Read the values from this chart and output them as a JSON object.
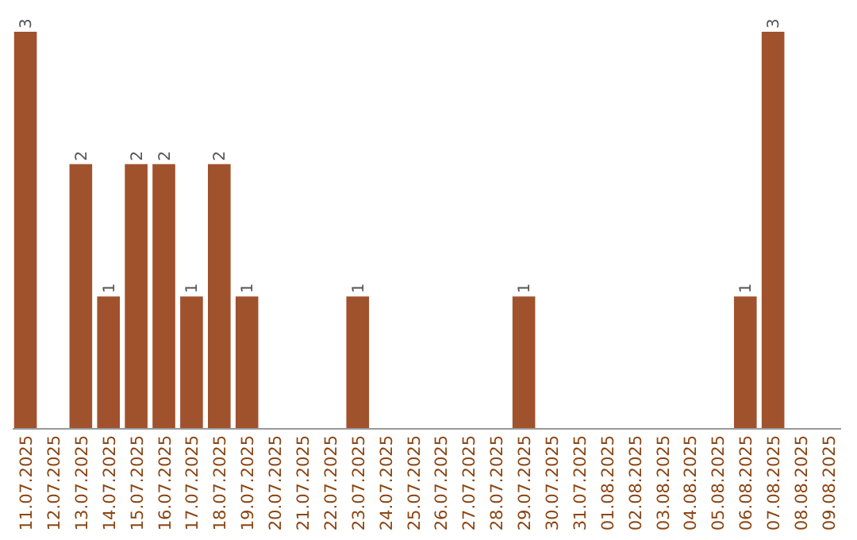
{
  "chart_data": {
    "type": "bar",
    "categories": [
      "11.07.2025",
      "12.07.2025",
      "13.07.2025",
      "14.07.2025",
      "15.07.2025",
      "16.07.2025",
      "17.07.2025",
      "18.07.2025",
      "19.07.2025",
      "20.07.2025",
      "21.07.2025",
      "22.07.2025",
      "23.07.2025",
      "24.07.2025",
      "25.07.2025",
      "26.07.2025",
      "27.07.2025",
      "28.07.2025",
      "29.07.2025",
      "30.07.2025",
      "31.07.2025",
      "01.08.2025",
      "02.08.2025",
      "03.08.2025",
      "04.08.2025",
      "05.08.2025",
      "06.08.2025",
      "07.08.2025",
      "08.08.2025",
      "09.08.2025"
    ],
    "values": [
      3,
      0,
      2,
      1,
      2,
      2,
      1,
      2,
      1,
      0,
      0,
      0,
      1,
      0,
      0,
      0,
      0,
      0,
      1,
      0,
      0,
      0,
      0,
      0,
      0,
      0,
      1,
      3,
      0,
      0
    ],
    "value_labels": [
      "3",
      null,
      "2",
      "1",
      "2",
      "2",
      "1",
      "2",
      "1",
      null,
      null,
      null,
      "1",
      null,
      null,
      null,
      null,
      null,
      "1",
      null,
      null,
      null,
      null,
      null,
      null,
      null,
      "1",
      "3",
      null,
      null
    ],
    "color": "#a0522d",
    "ylim": [
      0,
      3
    ]
  }
}
